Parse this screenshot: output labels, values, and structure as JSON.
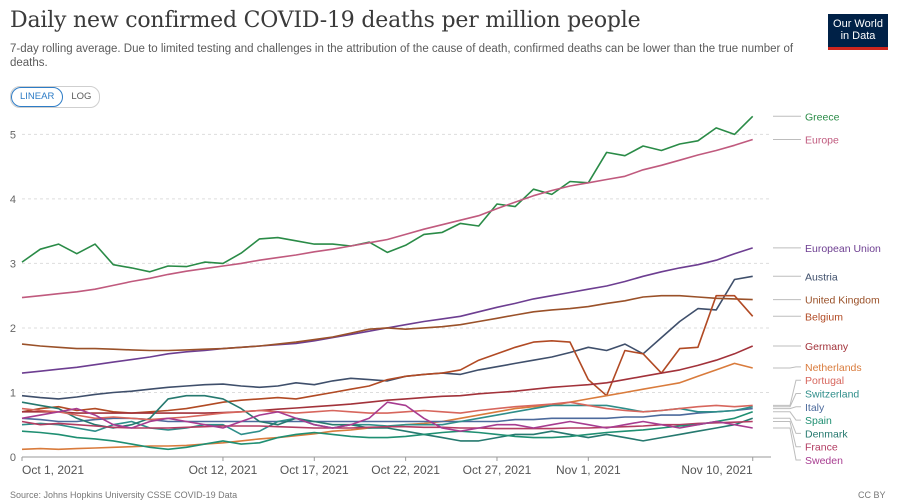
{
  "header": {
    "title": "Daily new confirmed COVID-19 deaths per million people",
    "subtitle": "7-day rolling average. Due to limited testing and challenges in the attribution of the cause of death, confirmed deaths can be lower than the true number of deaths.",
    "logo_line1": "Our World",
    "logo_line2": "in Data"
  },
  "controls": {
    "linear_label": "LINEAR",
    "log_label": "LOG",
    "selected": "LINEAR"
  },
  "footer": {
    "source_text": "Source: Johns Hopkins University CSSE COVID-19 Data",
    "license_text": "CC BY"
  },
  "chart_data": {
    "type": "line",
    "title": "Daily new confirmed COVID-19 deaths per million people",
    "xlabel": "",
    "ylabel": "",
    "ylim": [
      0,
      5.3
    ],
    "yticks": [
      0,
      1,
      2,
      3,
      4,
      5
    ],
    "xlim": [
      0,
      41
    ],
    "xticks": [
      {
        "label": "Oct 1, 2021",
        "day": 0
      },
      {
        "label": "Oct 12, 2021",
        "day": 11
      },
      {
        "label": "Oct 17, 2021",
        "day": 16
      },
      {
        "label": "Oct 22, 2021",
        "day": 21
      },
      {
        "label": "Oct 27, 2021",
        "day": 26
      },
      {
        "label": "Nov 1, 2021",
        "day": 31
      },
      {
        "label": "Nov 10, 2021",
        "day": 40
      }
    ],
    "grid": "horizontal dashed",
    "series": [
      {
        "name": "Greece",
        "color": "#2a8b47",
        "values": [
          3.02,
          3.22,
          3.3,
          3.15,
          3.3,
          2.98,
          2.93,
          2.87,
          2.96,
          2.95,
          3.02,
          3.0,
          3.16,
          3.38,
          3.4,
          3.35,
          3.3,
          3.3,
          3.27,
          3.33,
          3.17,
          3.28,
          3.45,
          3.48,
          3.62,
          3.58,
          3.92,
          3.88,
          4.15,
          4.07,
          4.27,
          4.25,
          4.72,
          4.67,
          4.82,
          4.75,
          4.85,
          4.9,
          5.1,
          5.0,
          5.28
        ]
      },
      {
        "name": "Europe",
        "color": "#c05a7e",
        "values": [
          2.47,
          2.5,
          2.53,
          2.56,
          2.6,
          2.66,
          2.72,
          2.77,
          2.83,
          2.88,
          2.92,
          2.96,
          3.0,
          3.05,
          3.09,
          3.13,
          3.18,
          3.22,
          3.27,
          3.32,
          3.37,
          3.45,
          3.53,
          3.6,
          3.67,
          3.74,
          3.85,
          3.95,
          4.05,
          4.13,
          4.2,
          4.25,
          4.3,
          4.35,
          4.45,
          4.52,
          4.6,
          4.68,
          4.75,
          4.83,
          4.92
        ]
      },
      {
        "name": "European Union",
        "color": "#6d3e91",
        "values": [
          1.3,
          1.33,
          1.36,
          1.39,
          1.43,
          1.47,
          1.51,
          1.55,
          1.6,
          1.63,
          1.65,
          1.68,
          1.7,
          1.72,
          1.74,
          1.76,
          1.8,
          1.85,
          1.9,
          1.95,
          2.0,
          2.05,
          2.1,
          2.14,
          2.18,
          2.25,
          2.32,
          2.38,
          2.45,
          2.5,
          2.55,
          2.6,
          2.65,
          2.72,
          2.8,
          2.87,
          2.93,
          2.98,
          3.05,
          3.15,
          3.24
        ]
      },
      {
        "name": "Austria",
        "color": "#3f4f6b",
        "values": [
          0.95,
          0.92,
          0.9,
          0.93,
          0.97,
          1.0,
          1.02,
          1.05,
          1.08,
          1.1,
          1.12,
          1.13,
          1.1,
          1.08,
          1.1,
          1.15,
          1.12,
          1.18,
          1.22,
          1.2,
          1.18,
          1.25,
          1.28,
          1.3,
          1.28,
          1.35,
          1.4,
          1.45,
          1.5,
          1.55,
          1.62,
          1.7,
          1.65,
          1.75,
          1.6,
          1.85,
          2.1,
          2.3,
          2.28,
          2.75,
          2.8
        ]
      },
      {
        "name": "United Kingdom",
        "color": "#9a5129",
        "values": [
          1.75,
          1.72,
          1.7,
          1.68,
          1.68,
          1.67,
          1.66,
          1.65,
          1.65,
          1.66,
          1.67,
          1.68,
          1.7,
          1.72,
          1.75,
          1.78,
          1.82,
          1.86,
          1.92,
          1.98,
          2.0,
          1.98,
          2.0,
          2.02,
          2.05,
          2.1,
          2.15,
          2.2,
          2.25,
          2.28,
          2.3,
          2.33,
          2.38,
          2.42,
          2.48,
          2.5,
          2.5,
          2.48,
          2.46,
          2.45,
          2.44
        ]
      },
      {
        "name": "Belgium",
        "color": "#b14a24",
        "values": [
          0.7,
          0.75,
          0.78,
          0.72,
          0.75,
          0.7,
          0.68,
          0.7,
          0.72,
          0.75,
          0.8,
          0.85,
          0.88,
          0.9,
          0.92,
          0.9,
          0.95,
          1.0,
          1.05,
          1.1,
          1.2,
          1.25,
          1.28,
          1.3,
          1.35,
          1.5,
          1.6,
          1.7,
          1.78,
          1.8,
          1.78,
          1.2,
          0.95,
          1.65,
          1.6,
          1.3,
          1.68,
          1.7,
          2.5,
          2.5,
          2.18
        ]
      },
      {
        "name": "Germany",
        "color": "#a2323a",
        "values": [
          0.7,
          0.7,
          0.7,
          0.68,
          0.68,
          0.68,
          0.68,
          0.68,
          0.68,
          0.68,
          0.68,
          0.69,
          0.7,
          0.72,
          0.74,
          0.76,
          0.78,
          0.8,
          0.82,
          0.85,
          0.88,
          0.9,
          0.92,
          0.94,
          0.95,
          0.98,
          1.0,
          1.02,
          1.05,
          1.08,
          1.1,
          1.12,
          1.15,
          1.2,
          1.25,
          1.3,
          1.35,
          1.42,
          1.5,
          1.6,
          1.72
        ]
      },
      {
        "name": "Netherlands",
        "color": "#d97b3c",
        "values": [
          0.12,
          0.13,
          0.12,
          0.13,
          0.14,
          0.15,
          0.16,
          0.17,
          0.17,
          0.18,
          0.2,
          0.22,
          0.25,
          0.28,
          0.3,
          0.33,
          0.36,
          0.4,
          0.42,
          0.45,
          0.47,
          0.5,
          0.52,
          0.55,
          0.6,
          0.65,
          0.7,
          0.75,
          0.78,
          0.8,
          0.85,
          0.9,
          0.95,
          1.0,
          1.05,
          1.1,
          1.15,
          1.25,
          1.35,
          1.45,
          1.38
        ]
      },
      {
        "name": "Italy",
        "color": "#4c6a9c",
        "values": [
          0.6,
          0.58,
          0.55,
          0.55,
          0.58,
          0.6,
          0.6,
          0.58,
          0.55,
          0.55,
          0.55,
          0.55,
          0.55,
          0.55,
          0.55,
          0.55,
          0.55,
          0.55,
          0.55,
          0.55,
          0.55,
          0.55,
          0.55,
          0.55,
          0.55,
          0.55,
          0.55,
          0.58,
          0.58,
          0.6,
          0.6,
          0.6,
          0.6,
          0.62,
          0.62,
          0.65,
          0.65,
          0.68,
          0.7,
          0.72,
          0.75
        ]
      },
      {
        "name": "Switzerland",
        "color": "#2f8e8a",
        "values": [
          0.5,
          0.52,
          0.5,
          0.45,
          0.4,
          0.5,
          0.55,
          0.45,
          0.42,
          0.45,
          0.5,
          0.5,
          0.35,
          0.4,
          0.55,
          0.6,
          0.5,
          0.45,
          0.5,
          0.5,
          0.48,
          0.5,
          0.5,
          0.5,
          0.55,
          0.6,
          0.65,
          0.7,
          0.75,
          0.8,
          0.8,
          0.8,
          0.8,
          0.75,
          0.7,
          0.72,
          0.75,
          0.7,
          0.7,
          0.72,
          0.78
        ]
      },
      {
        "name": "Denmark",
        "color": "#26796f",
        "values": [
          0.85,
          0.8,
          0.75,
          0.6,
          0.5,
          0.45,
          0.5,
          0.6,
          0.9,
          0.95,
          0.95,
          0.9,
          0.75,
          0.55,
          0.5,
          0.6,
          0.55,
          0.5,
          0.5,
          0.45,
          0.45,
          0.4,
          0.35,
          0.3,
          0.25,
          0.25,
          0.3,
          0.35,
          0.35,
          0.4,
          0.35,
          0.3,
          0.35,
          0.3,
          0.25,
          0.3,
          0.35,
          0.4,
          0.45,
          0.5,
          0.6
        ]
      },
      {
        "name": "Portugal",
        "color": "#d7665d",
        "values": [
          0.75,
          0.72,
          0.7,
          0.65,
          0.6,
          0.62,
          0.6,
          0.58,
          0.6,
          0.62,
          0.65,
          0.68,
          0.7,
          0.72,
          0.7,
          0.68,
          0.7,
          0.72,
          0.7,
          0.68,
          0.68,
          0.7,
          0.72,
          0.7,
          0.68,
          0.72,
          0.75,
          0.78,
          0.8,
          0.82,
          0.85,
          0.8,
          0.75,
          0.72,
          0.7,
          0.72,
          0.75,
          0.78,
          0.8,
          0.78,
          0.8
        ]
      },
      {
        "name": "France",
        "color": "#b23c62",
        "values": [
          0.55,
          0.5,
          0.52,
          0.5,
          0.48,
          0.46,
          0.45,
          0.45,
          0.45,
          0.46,
          0.47,
          0.48,
          0.48,
          0.48,
          0.47,
          0.46,
          0.45,
          0.45,
          0.45,
          0.46,
          0.47,
          0.47,
          0.46,
          0.46,
          0.45,
          0.45,
          0.44,
          0.44,
          0.44,
          0.44,
          0.45,
          0.45,
          0.46,
          0.47,
          0.48,
          0.5,
          0.5,
          0.52,
          0.53,
          0.54,
          0.55
        ]
      },
      {
        "name": "Spain",
        "color": "#1f8f72",
        "values": [
          0.4,
          0.38,
          0.35,
          0.3,
          0.28,
          0.25,
          0.2,
          0.15,
          0.12,
          0.15,
          0.2,
          0.25,
          0.2,
          0.22,
          0.3,
          0.35,
          0.38,
          0.35,
          0.32,
          0.3,
          0.3,
          0.32,
          0.35,
          0.38,
          0.4,
          0.38,
          0.35,
          0.32,
          0.3,
          0.3,
          0.32,
          0.35,
          0.38,
          0.4,
          0.42,
          0.45,
          0.48,
          0.5,
          0.55,
          0.6,
          0.7
        ]
      },
      {
        "name": "Sweden",
        "color": "#a73c90",
        "values": [
          0.6,
          0.65,
          0.7,
          0.75,
          0.65,
          0.5,
          0.45,
          0.55,
          0.6,
          0.55,
          0.5,
          0.45,
          0.55,
          0.65,
          0.7,
          0.6,
          0.5,
          0.45,
          0.5,
          0.6,
          0.85,
          0.8,
          0.6,
          0.45,
          0.4,
          0.45,
          0.5,
          0.5,
          0.45,
          0.5,
          0.55,
          0.5,
          0.45,
          0.5,
          0.55,
          0.5,
          0.45,
          0.5,
          0.55,
          0.5,
          0.45
        ]
      }
    ]
  }
}
